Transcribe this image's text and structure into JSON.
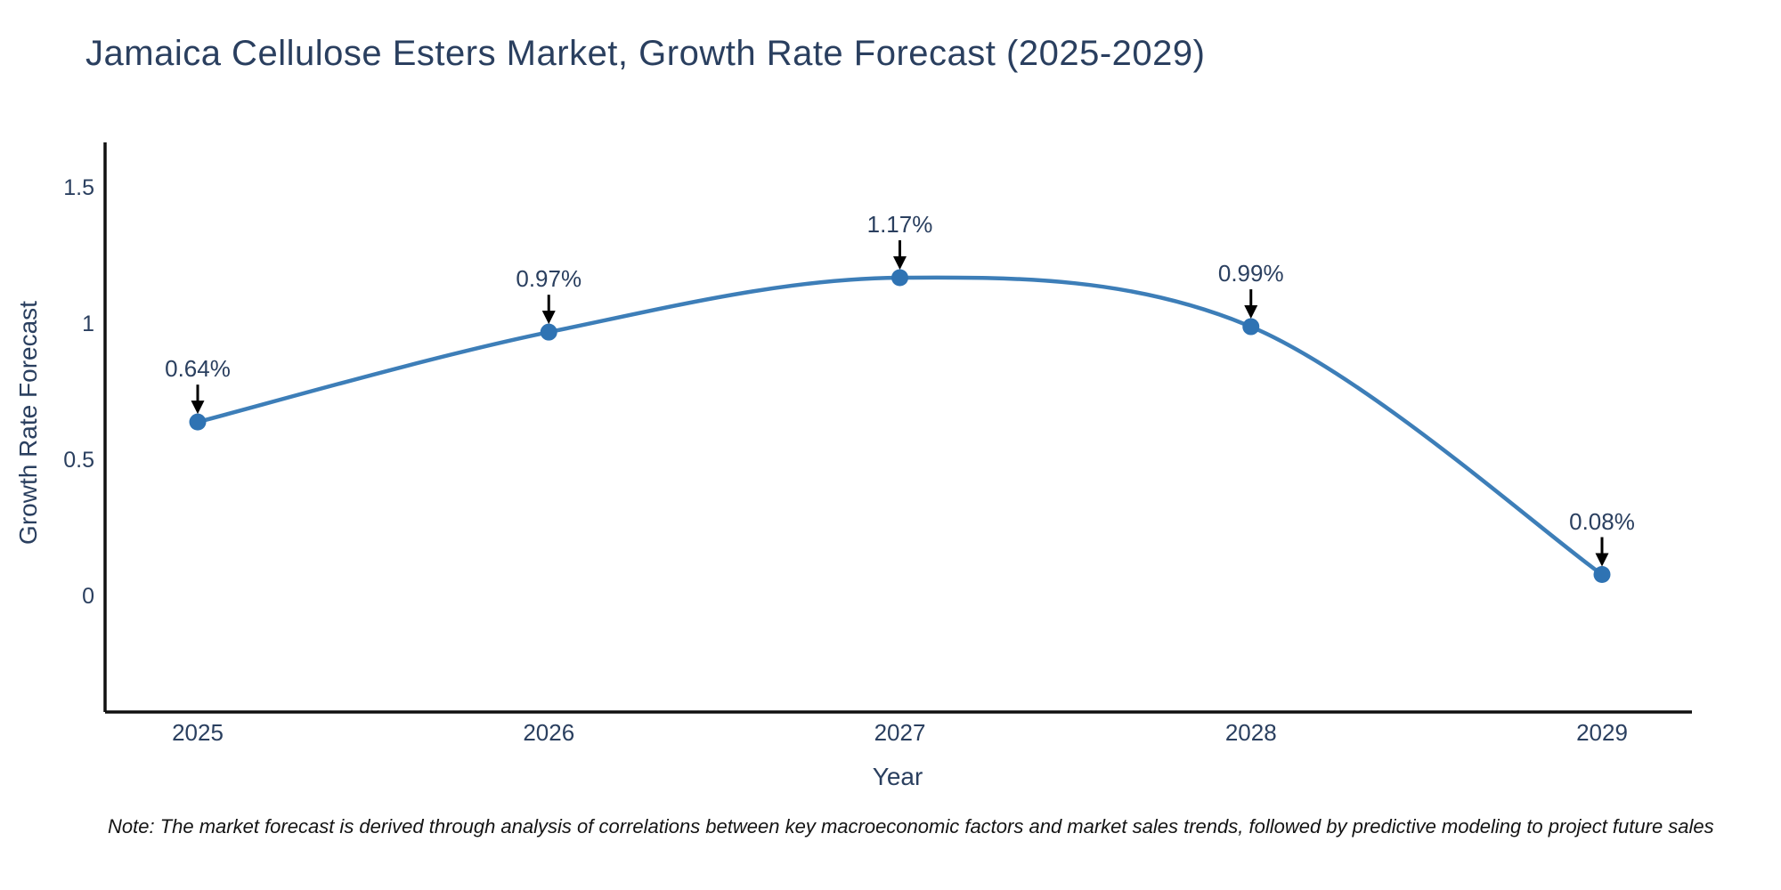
{
  "header": {
    "title": "Jamaica Cellulose Esters Market, Growth Rate Forecast (2025-2029)"
  },
  "chart_data": {
    "type": "line",
    "line_shape": "spline",
    "x": [
      2025,
      2026,
      2027,
      2028,
      2029
    ],
    "values": [
      0.64,
      0.97,
      1.17,
      0.99,
      0.08
    ],
    "point_labels": [
      "0.64%",
      "0.97%",
      "1.17%",
      "0.99%",
      "0.08%"
    ],
    "xticklabels": [
      "2025",
      "2026",
      "2027",
      "2028",
      "2029"
    ],
    "yticks": [
      0,
      0.5,
      1,
      1.5
    ],
    "ytick_labels": [
      "0",
      "0.5",
      "1",
      "1.5"
    ],
    "xlabel": "Year",
    "ylabel": "Growth Rate Forecast",
    "ylim": [
      -0.43,
      1.67
    ],
    "xlim": [
      2024.74,
      2029.26
    ],
    "grid": false,
    "legend": "none",
    "line_color": "#3d7eb8",
    "marker_color": "#2f73b3",
    "arrow_color": "#000000",
    "axis_color": "#111111",
    "text_color": "#2a3f5f"
  },
  "note": {
    "text": "Note: The market forecast is derived through analysis of correlations between key macroeconomic factors and market sales trends, followed by predictive modeling to project future sales"
  }
}
